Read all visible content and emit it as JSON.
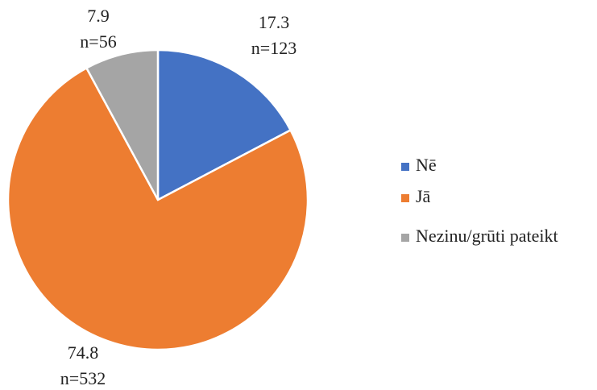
{
  "chart_data": {
    "type": "pie",
    "categories": [
      "Nē",
      "Jā",
      "Nezinu/grūti pateikt"
    ],
    "values": [
      17.3,
      74.8,
      7.9
    ],
    "sample_labels": [
      "n=123",
      "n=532",
      "n=56"
    ],
    "colors": [
      "#4472c4",
      "#ed7d31",
      "#a5a5a5"
    ],
    "legend": "right"
  }
}
